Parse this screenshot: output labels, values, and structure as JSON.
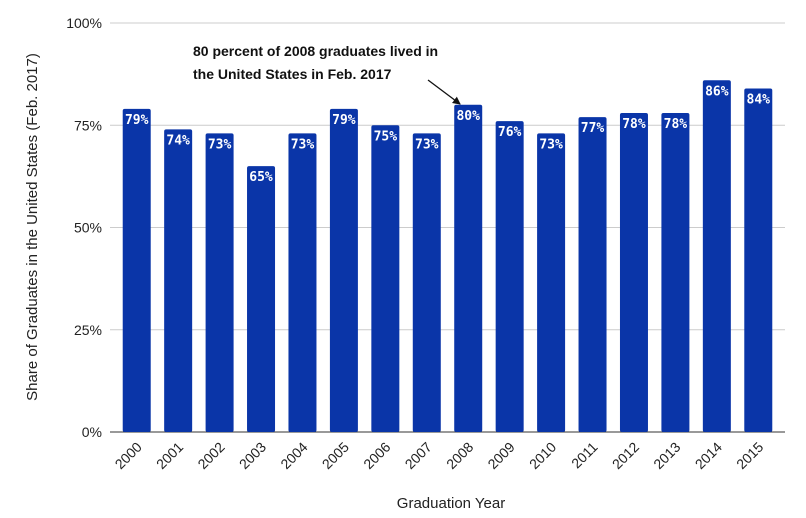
{
  "chart_data": {
    "type": "bar",
    "categories": [
      "2000",
      "2001",
      "2002",
      "2003",
      "2004",
      "2005",
      "2006",
      "2007",
      "2008",
      "2009",
      "2010",
      "2011",
      "2012",
      "2013",
      "2014",
      "2015"
    ],
    "values": [
      79,
      74,
      73,
      65,
      73,
      79,
      75,
      73,
      80,
      76,
      73,
      77,
      78,
      78,
      86,
      84
    ],
    "data_labels": [
      "79%",
      "74%",
      "73%",
      "65%",
      "73%",
      "79%",
      "75%",
      "73%",
      "80%",
      "76%",
      "73%",
      "77%",
      "78%",
      "78%",
      "86%",
      "84%"
    ],
    "xlabel": "Graduation Year",
    "ylabel": "Share of Graduates in the United States (Feb. 2017)",
    "ylim": [
      0,
      100
    ],
    "yticks": [
      0,
      25,
      50,
      75,
      100
    ],
    "ytick_labels": [
      "0%",
      "25%",
      "50%",
      "75%",
      "100%"
    ],
    "grid": true,
    "bar_color": "#0a35a8",
    "annotation": {
      "lines": [
        "80 percent of 2008 graduates lived in",
        "the United States in Feb. 2017"
      ],
      "target_category": "2008"
    }
  }
}
